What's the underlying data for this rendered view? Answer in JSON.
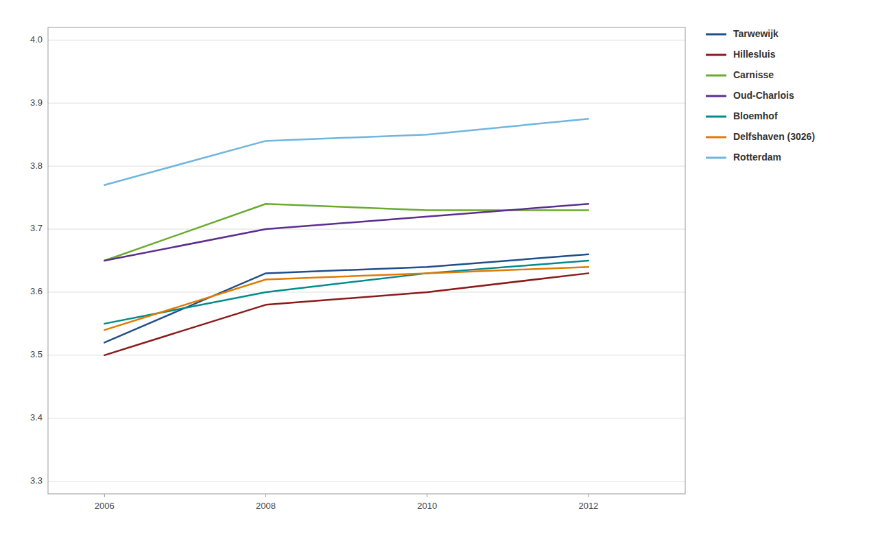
{
  "chart_data": {
    "type": "line",
    "x": [
      2006,
      2008,
      2010,
      2012
    ],
    "series": [
      {
        "name": "Tarwewijk",
        "color": "#1F4E8C",
        "values": [
          3.52,
          3.63,
          3.64,
          3.66
        ]
      },
      {
        "name": "Hillesluis",
        "color": "#8B1A1A",
        "values": [
          3.5,
          3.58,
          3.6,
          3.63
        ]
      },
      {
        "name": "Carnisse",
        "color": "#6AAB2E",
        "values": [
          3.65,
          3.74,
          3.73,
          3.73
        ]
      },
      {
        "name": "Oud-Charlois",
        "color": "#5B2D8E",
        "values": [
          3.65,
          3.7,
          3.72,
          3.74
        ]
      },
      {
        "name": "Bloemhof",
        "color": "#008B8B",
        "values": [
          3.55,
          3.6,
          3.63,
          3.65
        ]
      },
      {
        "name": "Delfshaven (3026)",
        "color": "#E07B00",
        "values": [
          3.54,
          3.62,
          3.63,
          3.64
        ]
      },
      {
        "name": "Rotterdam",
        "color": "#6EB5E0",
        "values": [
          3.77,
          3.84,
          3.85,
          3.875
        ]
      }
    ],
    "xlim": [
      2005.3,
      2013.2
    ],
    "xticks": [
      2006,
      2008,
      2010,
      2012
    ],
    "ylim": [
      3.28,
      4.02
    ],
    "yticks": [
      3.3,
      3.4,
      3.5,
      3.6,
      3.7,
      3.8,
      3.9,
      {
        "value": 4.0,
        "label": "4.0"
      }
    ],
    "grid": true,
    "legend": "right"
  }
}
